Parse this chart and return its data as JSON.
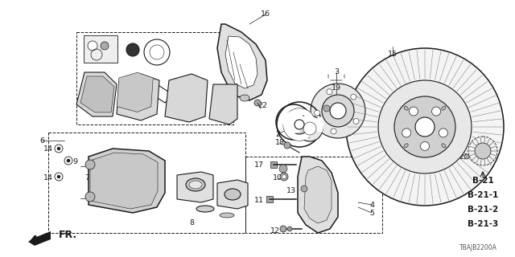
{
  "bg_color": "#ffffff",
  "diagram_code": "TBAJB2200A",
  "b_codes": [
    "B-21",
    "B-21-1",
    "B-21-2",
    "B-21-3"
  ],
  "dark": "#1a1a1a",
  "gray": "#888888",
  "lightgray": "#d8d8d8",
  "midgray": "#aaaaaa"
}
